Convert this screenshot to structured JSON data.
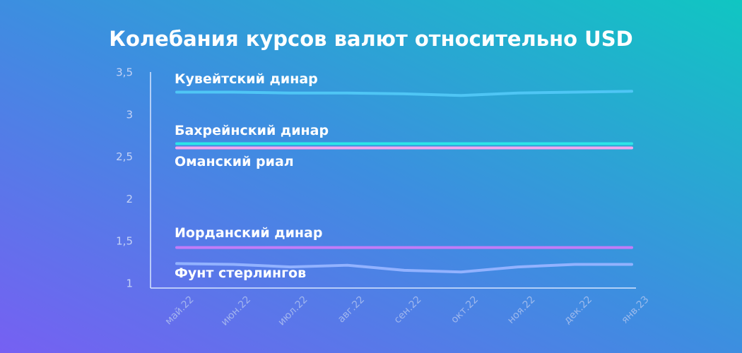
{
  "chart_data": {
    "type": "line",
    "title": "Колебания курсов валют относительно USD",
    "categories": [
      "май.22",
      "июн.22",
      "июл.22",
      "авг.22",
      "сен.22",
      "окт.22",
      "ноя.22",
      "дек.22",
      "янв.23"
    ],
    "series": [
      {
        "name": "Кувейтский динар",
        "color": "#4fc6f5",
        "values": [
          3.27,
          3.27,
          3.26,
          3.26,
          3.25,
          3.23,
          3.26,
          3.27,
          3.28
        ]
      },
      {
        "name": "Бахрейнский динар",
        "color": "#2ce5e8",
        "values": [
          2.66,
          2.66,
          2.66,
          2.66,
          2.66,
          2.66,
          2.66,
          2.66,
          2.66
        ]
      },
      {
        "name": "Оманский риал",
        "color": "#f2a6ee",
        "values": [
          2.61,
          2.61,
          2.61,
          2.61,
          2.61,
          2.61,
          2.61,
          2.61,
          2.61
        ]
      },
      {
        "name": "Иорданский динар",
        "color": "#c27cf7",
        "values": [
          1.43,
          1.43,
          1.43,
          1.43,
          1.43,
          1.43,
          1.43,
          1.43,
          1.43
        ]
      },
      {
        "name": "Фунт стерлингов",
        "color": "#92b2ff",
        "values": [
          1.24,
          1.23,
          1.2,
          1.22,
          1.16,
          1.14,
          1.2,
          1.23,
          1.23
        ]
      }
    ],
    "ylim": [
      1,
      3.5
    ],
    "yticks": [
      1,
      {
        "value": 1.5,
        "label": "1,5"
      },
      2,
      {
        "value": 2.5,
        "label": "2,5"
      },
      3,
      {
        "value": 3.5,
        "label": "3,5"
      }
    ],
    "grid": false
  }
}
